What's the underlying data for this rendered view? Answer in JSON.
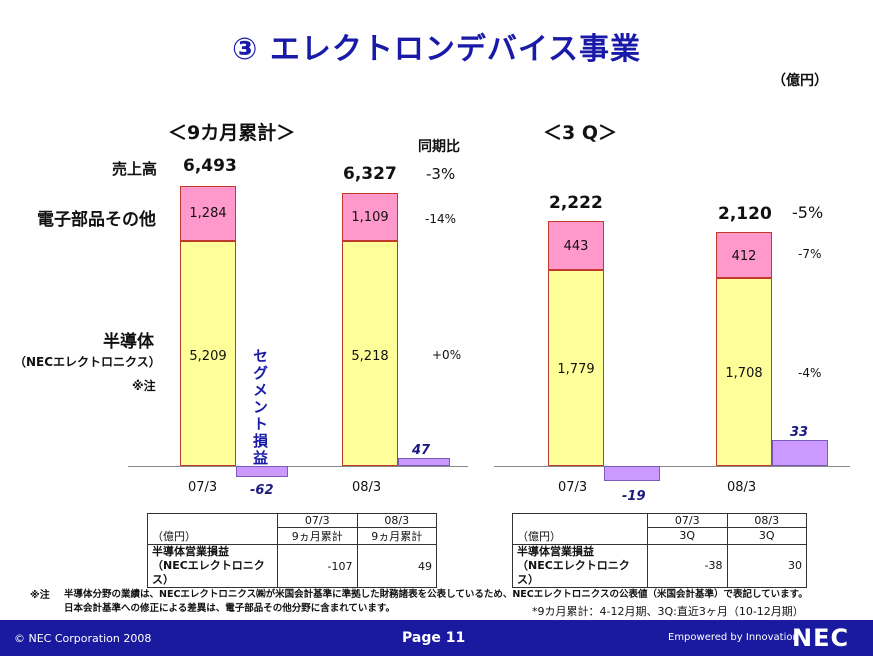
{
  "title": "③ エレクトロンデバイス事業",
  "unit": "（億円）",
  "left_panel": {
    "heading": "＜9カ月累計＞",
    "yoy_label": "同期比",
    "row_labels": {
      "sales": "売上高",
      "electronic": "電子部品その他",
      "semi": "半導体",
      "semi_sub": "（NECエレクトロニクス）",
      "note_mark": "※注"
    },
    "segment_label": "セグメント損益",
    "bars": [
      {
        "period": "07/3",
        "total": "6,493",
        "semi": 5209,
        "semi_text": "5,209",
        "other": 1284,
        "other_text": "1,284",
        "segment": -62,
        "segment_text": "-62"
      },
      {
        "period": "08/3",
        "total": "6,327",
        "semi": 5218,
        "semi_text": "5,218",
        "other": 1109,
        "other_text": "1,109",
        "segment": 47,
        "segment_text": "47"
      }
    ],
    "yoy": {
      "total": "-3%",
      "other": "-14%",
      "semi": "+0%"
    }
  },
  "right_panel": {
    "heading": "＜3 Q＞",
    "bars": [
      {
        "period": "07/3",
        "total": "2,222",
        "semi": 1779,
        "semi_text": "1,779",
        "other": 443,
        "other_text": "443",
        "segment": -19,
        "segment_text": "-19"
      },
      {
        "period": "08/3",
        "total": "2,120",
        "semi": 1708,
        "semi_text": "1,708",
        "other": 412,
        "other_text": "412",
        "segment": 33,
        "segment_text": "33"
      }
    ],
    "yoy": {
      "total": "-5%",
      "other": "-7%",
      "semi": "-4%"
    }
  },
  "table_left": {
    "unit": "（億円）",
    "h1": [
      "07/3",
      "08/3"
    ],
    "h2": [
      "9ヵ月累計",
      "9ヵ月累計"
    ],
    "row_label1": "半導体営業損益",
    "row_label2": "（NECエレクトロニクス）",
    "values": [
      "-107",
      "49"
    ]
  },
  "table_right": {
    "unit": "（億円）",
    "h1": [
      "07/3",
      "08/3"
    ],
    "h2": [
      "3Q",
      "3Q"
    ],
    "row_label1": "半導体営業損益",
    "row_label2": "（NECエレクトロニクス）",
    "values": [
      "-38",
      "30"
    ]
  },
  "notes": {
    "mark": "※注",
    "line1": "半導体分野の業績は、NECエレクトロニクス㈱が米国会計基準に準拠した財務諸表を公表しているため、NECエレクトロニクスの公表値（米国会計基準）で表記しています。",
    "line2": "日本会計基準への修正による差異は、電子部品その他分野に含まれています。",
    "period": "*9カ月累計：4-12月期、3Q:直近3ヶ月（10-12月期）"
  },
  "footer": {
    "copyright": "© NEC Corporation 2008",
    "page": "Page 11",
    "tagline": "Empowered by Innovation",
    "logo": "NEC"
  },
  "colors": {
    "semi": "#ffff99",
    "other": "#ff99cc",
    "segment": "#cc99ff",
    "title": "#1a1aa8",
    "footer": "#1a1aa0"
  },
  "chart_data": [
    {
      "type": "bar",
      "title": "＜9カ月累計＞",
      "categories": [
        "07/3",
        "08/3"
      ],
      "series": [
        {
          "name": "半導体（NECエレクトロニクス）",
          "values": [
            5209,
            5218
          ]
        },
        {
          "name": "電子部品その他",
          "values": [
            1284,
            1109
          ]
        },
        {
          "name": "セグメント損益",
          "values": [
            -62,
            47
          ]
        }
      ],
      "totals": [
        6493,
        6327
      ]
    },
    {
      "type": "bar",
      "title": "＜3 Q＞",
      "categories": [
        "07/3",
        "08/3"
      ],
      "series": [
        {
          "name": "半導体（NECエレクトロニクス）",
          "values": [
            1779,
            1708
          ]
        },
        {
          "name": "電子部品その他",
          "values": [
            443,
            412
          ]
        },
        {
          "name": "セグメント損益",
          "values": [
            -19,
            33
          ]
        }
      ],
      "totals": [
        2222,
        2120
      ]
    }
  ]
}
